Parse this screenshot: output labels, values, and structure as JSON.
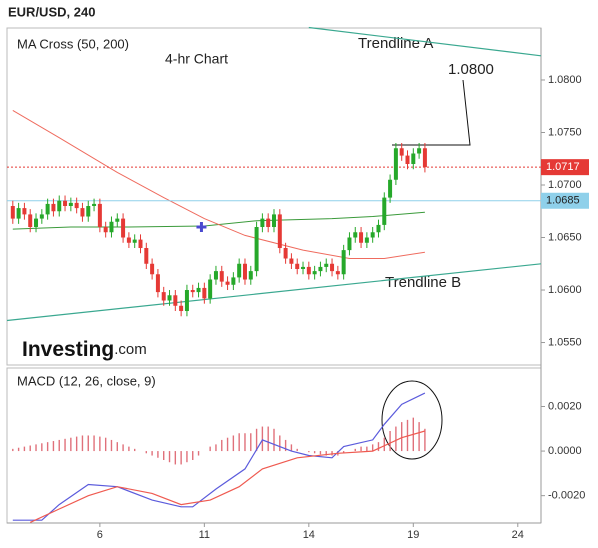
{
  "chart_data": [
    {
      "type": "candlestick",
      "title": "EUR/USD, 240",
      "legend": "MA Cross (50, 200)",
      "subtitle": "4-hr Chart",
      "xlim": [
        -1,
        91
      ],
      "ylim": [
        1.05286,
        1.08495
      ],
      "yticks": [
        {
          "value": 1.055,
          "label": "1.0550"
        },
        {
          "value": 1.06,
          "label": "1.0600"
        },
        {
          "value": 1.065,
          "label": "1.0650"
        },
        {
          "value": 1.07,
          "label": "1.0700"
        },
        {
          "value": 1.075,
          "label": "1.0750"
        },
        {
          "value": 1.08,
          "label": "1.0800"
        }
      ],
      "up_color": "#26a82a",
      "down_color": "#e53935",
      "open": [
        1.068,
        1.0668,
        1.0678,
        1.0672,
        1.066,
        1.0668,
        1.0672,
        1.0682,
        1.0675,
        1.0685,
        1.068,
        1.0683,
        1.0678,
        1.067,
        1.068,
        1.0682,
        1.066,
        1.0655,
        1.0665,
        1.0668,
        1.065,
        1.0645,
        1.0648,
        1.064,
        1.0625,
        1.0615,
        1.0598,
        1.059,
        1.0595,
        1.0585,
        1.058,
        1.06,
        1.0598,
        1.0602,
        1.0592,
        1.061,
        1.0618,
        1.0608,
        1.0605,
        1.0612,
        1.0625,
        1.061,
        1.0618,
        1.066,
        1.0668,
        1.066,
        1.0672,
        1.064,
        1.063,
        1.0625,
        1.062,
        1.0622,
        1.0615,
        1.0618,
        1.0622,
        1.0625,
        1.0618,
        1.0615,
        1.0638,
        1.065,
        1.0655,
        1.0645,
        1.065,
        1.0655,
        1.0662,
        1.0688,
        1.0705,
        1.0735,
        1.0728,
        1.072,
        1.073,
        1.0735
      ],
      "high": [
        1.0685,
        1.0683,
        1.0683,
        1.0677,
        1.0673,
        1.0677,
        1.0687,
        1.0687,
        1.069,
        1.069,
        1.0688,
        1.0688,
        1.0683,
        1.0685,
        1.0687,
        1.0687,
        1.0665,
        1.067,
        1.0673,
        1.0673,
        1.0655,
        1.0653,
        1.0653,
        1.0645,
        1.063,
        1.062,
        1.0603,
        1.06,
        1.06,
        1.059,
        1.0605,
        1.0605,
        1.0607,
        1.0607,
        1.0615,
        1.0623,
        1.0623,
        1.0613,
        1.0617,
        1.063,
        1.063,
        1.0623,
        1.0665,
        1.0673,
        1.0673,
        1.0677,
        1.0677,
        1.0645,
        1.0635,
        1.063,
        1.0627,
        1.0627,
        1.0623,
        1.0627,
        1.063,
        1.063,
        1.0623,
        1.0643,
        1.0655,
        1.066,
        1.066,
        1.0655,
        1.066,
        1.0667,
        1.0693,
        1.071,
        1.074,
        1.074,
        1.0733,
        1.0735,
        1.074,
        1.074
      ],
      "low": [
        1.0663,
        1.0663,
        1.0667,
        1.0655,
        1.0655,
        1.0663,
        1.0667,
        1.067,
        1.067,
        1.0675,
        1.0675,
        1.0673,
        1.0665,
        1.0665,
        1.0675,
        1.0655,
        1.065,
        1.065,
        1.066,
        1.0645,
        1.064,
        1.064,
        1.0635,
        1.062,
        1.061,
        1.0593,
        1.0585,
        1.0585,
        1.058,
        1.0575,
        1.0575,
        1.0593,
        1.0593,
        1.0587,
        1.0587,
        1.0605,
        1.0603,
        1.06,
        1.06,
        1.0607,
        1.0605,
        1.0605,
        1.0613,
        1.0655,
        1.0655,
        1.0655,
        1.0635,
        1.0625,
        1.062,
        1.0615,
        1.0615,
        1.061,
        1.061,
        1.0613,
        1.0617,
        1.0613,
        1.061,
        1.061,
        1.0633,
        1.0645,
        1.064,
        1.064,
        1.0645,
        1.065,
        1.0657,
        1.0683,
        1.07,
        1.0723,
        1.0715,
        1.0715,
        1.0725,
        1.0712
      ],
      "close": [
        1.0668,
        1.0678,
        1.0672,
        1.066,
        1.0668,
        1.0672,
        1.0682,
        1.0675,
        1.0685,
        1.068,
        1.0683,
        1.0678,
        1.067,
        1.068,
        1.0682,
        1.066,
        1.0655,
        1.0665,
        1.0668,
        1.065,
        1.0645,
        1.0648,
        1.064,
        1.0625,
        1.0615,
        1.0598,
        1.059,
        1.0595,
        1.0585,
        1.058,
        1.06,
        1.0598,
        1.0602,
        1.0592,
        1.061,
        1.0618,
        1.0608,
        1.0605,
        1.0612,
        1.0625,
        1.061,
        1.0618,
        1.066,
        1.0668,
        1.066,
        1.0672,
        1.064,
        1.063,
        1.0625,
        1.062,
        1.0622,
        1.0615,
        1.0618,
        1.0622,
        1.0625,
        1.0618,
        1.0615,
        1.0638,
        1.065,
        1.0655,
        1.0645,
        1.065,
        1.0655,
        1.0662,
        1.0688,
        1.0705,
        1.0735,
        1.0728,
        1.072,
        1.073,
        1.0735,
        1.0717
      ],
      "ma_lines": [
        {
          "color": "#3a9a3a",
          "x": [
            0,
            10,
            20,
            33,
            42,
            55,
            62,
            71
          ],
          "values": [
            1.0658,
            1.066,
            1.066,
            1.0661,
            1.0666,
            1.0668,
            1.067,
            1.0674
          ]
        },
        {
          "color": "#ef6b5e",
          "x": [
            0,
            8,
            18,
            26,
            33,
            40,
            50,
            58,
            64,
            71
          ],
          "values": [
            1.0771,
            1.0745,
            1.0712,
            1.0688,
            1.0668,
            1.0652,
            1.0638,
            1.063,
            1.063,
            1.0636
          ]
        }
      ],
      "cross_marker": {
        "x": 32.5,
        "value": 1.066,
        "color": "#4a4ad0"
      },
      "trendlines": [
        {
          "label": "Trendline A",
          "color": "#3aa890",
          "x": [
            51,
            91
          ],
          "values": [
            1.085,
            1.0823
          ]
        },
        {
          "label": "Trendline B",
          "color": "#3aa890",
          "x": [
            -1,
            91
          ],
          "values": [
            1.0571,
            1.0625
          ]
        }
      ],
      "price_lines": [
        {
          "value": 1.0717,
          "color": "#e53935",
          "label_color": "#ffffff"
        },
        {
          "value": 1.0685,
          "color": "#8fd0ea",
          "label_color": "#222222"
        }
      ],
      "annotation": "1.0800",
      "watermark": {
        "brand": "Investing",
        "suffix": ".com"
      }
    },
    {
      "type": "macd",
      "title": "MACD (12, 26, close, 9)",
      "xlim": [
        -1,
        91
      ],
      "ylim": [
        -0.003227,
        0.003727
      ],
      "xticks": [
        {
          "value": 15,
          "label": "6"
        },
        {
          "value": 33,
          "label": "11"
        },
        {
          "value": 51,
          "label": "14"
        },
        {
          "value": 69,
          "label": "19"
        },
        {
          "value": 87,
          "label": "24"
        }
      ],
      "yticks": [
        {
          "value": -0.002,
          "label": "-0.0020"
        },
        {
          "value": 0,
          "label": "0.0000"
        },
        {
          "value": 0.002,
          "label": "0.0020"
        }
      ],
      "histogram": {
        "color": "#e0707a",
        "values": [
          0.0001,
          0.00015,
          0.0002,
          0.00025,
          0.0003,
          0.00035,
          0.0004,
          0.00045,
          0.0005,
          0.00055,
          0.0006,
          0.00065,
          0.0007,
          0.0007,
          0.0007,
          0.00065,
          0.0006,
          0.0005,
          0.0004,
          0.0003,
          0.0002,
          0.0001,
          0,
          -0.0001,
          -0.0002,
          -0.0003,
          -0.0004,
          -0.0005,
          -0.0006,
          -0.0006,
          -0.0005,
          -0.0004,
          -0.0002,
          0,
          0.0002,
          0.0003,
          0.0005,
          0.0006,
          0.0007,
          0.0008,
          0.0008,
          0.0008,
          0.001,
          0.0011,
          0.0011,
          0.001,
          0.0007,
          0.0005,
          0.0003,
          0.0001,
          0,
          -5e-05,
          -0.0001,
          -0.00015,
          -0.0002,
          -0.0002,
          -0.0002,
          -0.0001,
          0,
          0.0001,
          0.0002,
          0.0002,
          0.0003,
          0.0004,
          0.0006,
          0.0009,
          0.0011,
          0.0013,
          0.0014,
          0.0015,
          0.0013,
          0.001
        ]
      },
      "series": [
        {
          "color": "#5b5bdc",
          "x": [
            0,
            5,
            8,
            13,
            18,
            24,
            29,
            31,
            35,
            40,
            43,
            48,
            51,
            55,
            57,
            62,
            64,
            67,
            71
          ],
          "values": [
            -0.0031,
            -0.0031,
            -0.0024,
            -0.0015,
            -0.0016,
            -0.0022,
            -0.0025,
            -0.0025,
            -0.0017,
            -0.0008,
            0.0005,
            0,
            -0.0002,
            -0.0003,
            0.0002,
            0.0005,
            0.0012,
            0.0021,
            0.0026
          ]
        },
        {
          "color": "#ef5a50",
          "x": [
            3,
            8,
            13,
            18,
            24,
            29,
            34,
            39,
            43,
            49,
            56,
            62,
            67,
            71
          ],
          "values": [
            -0.0032,
            -0.0026,
            -0.002,
            -0.0016,
            -0.0019,
            -0.0024,
            -0.0022,
            -0.0016,
            -0.0008,
            -0.0003,
            -0.0001,
            0,
            0.0006,
            0.0009
          ]
        }
      ]
    }
  ]
}
